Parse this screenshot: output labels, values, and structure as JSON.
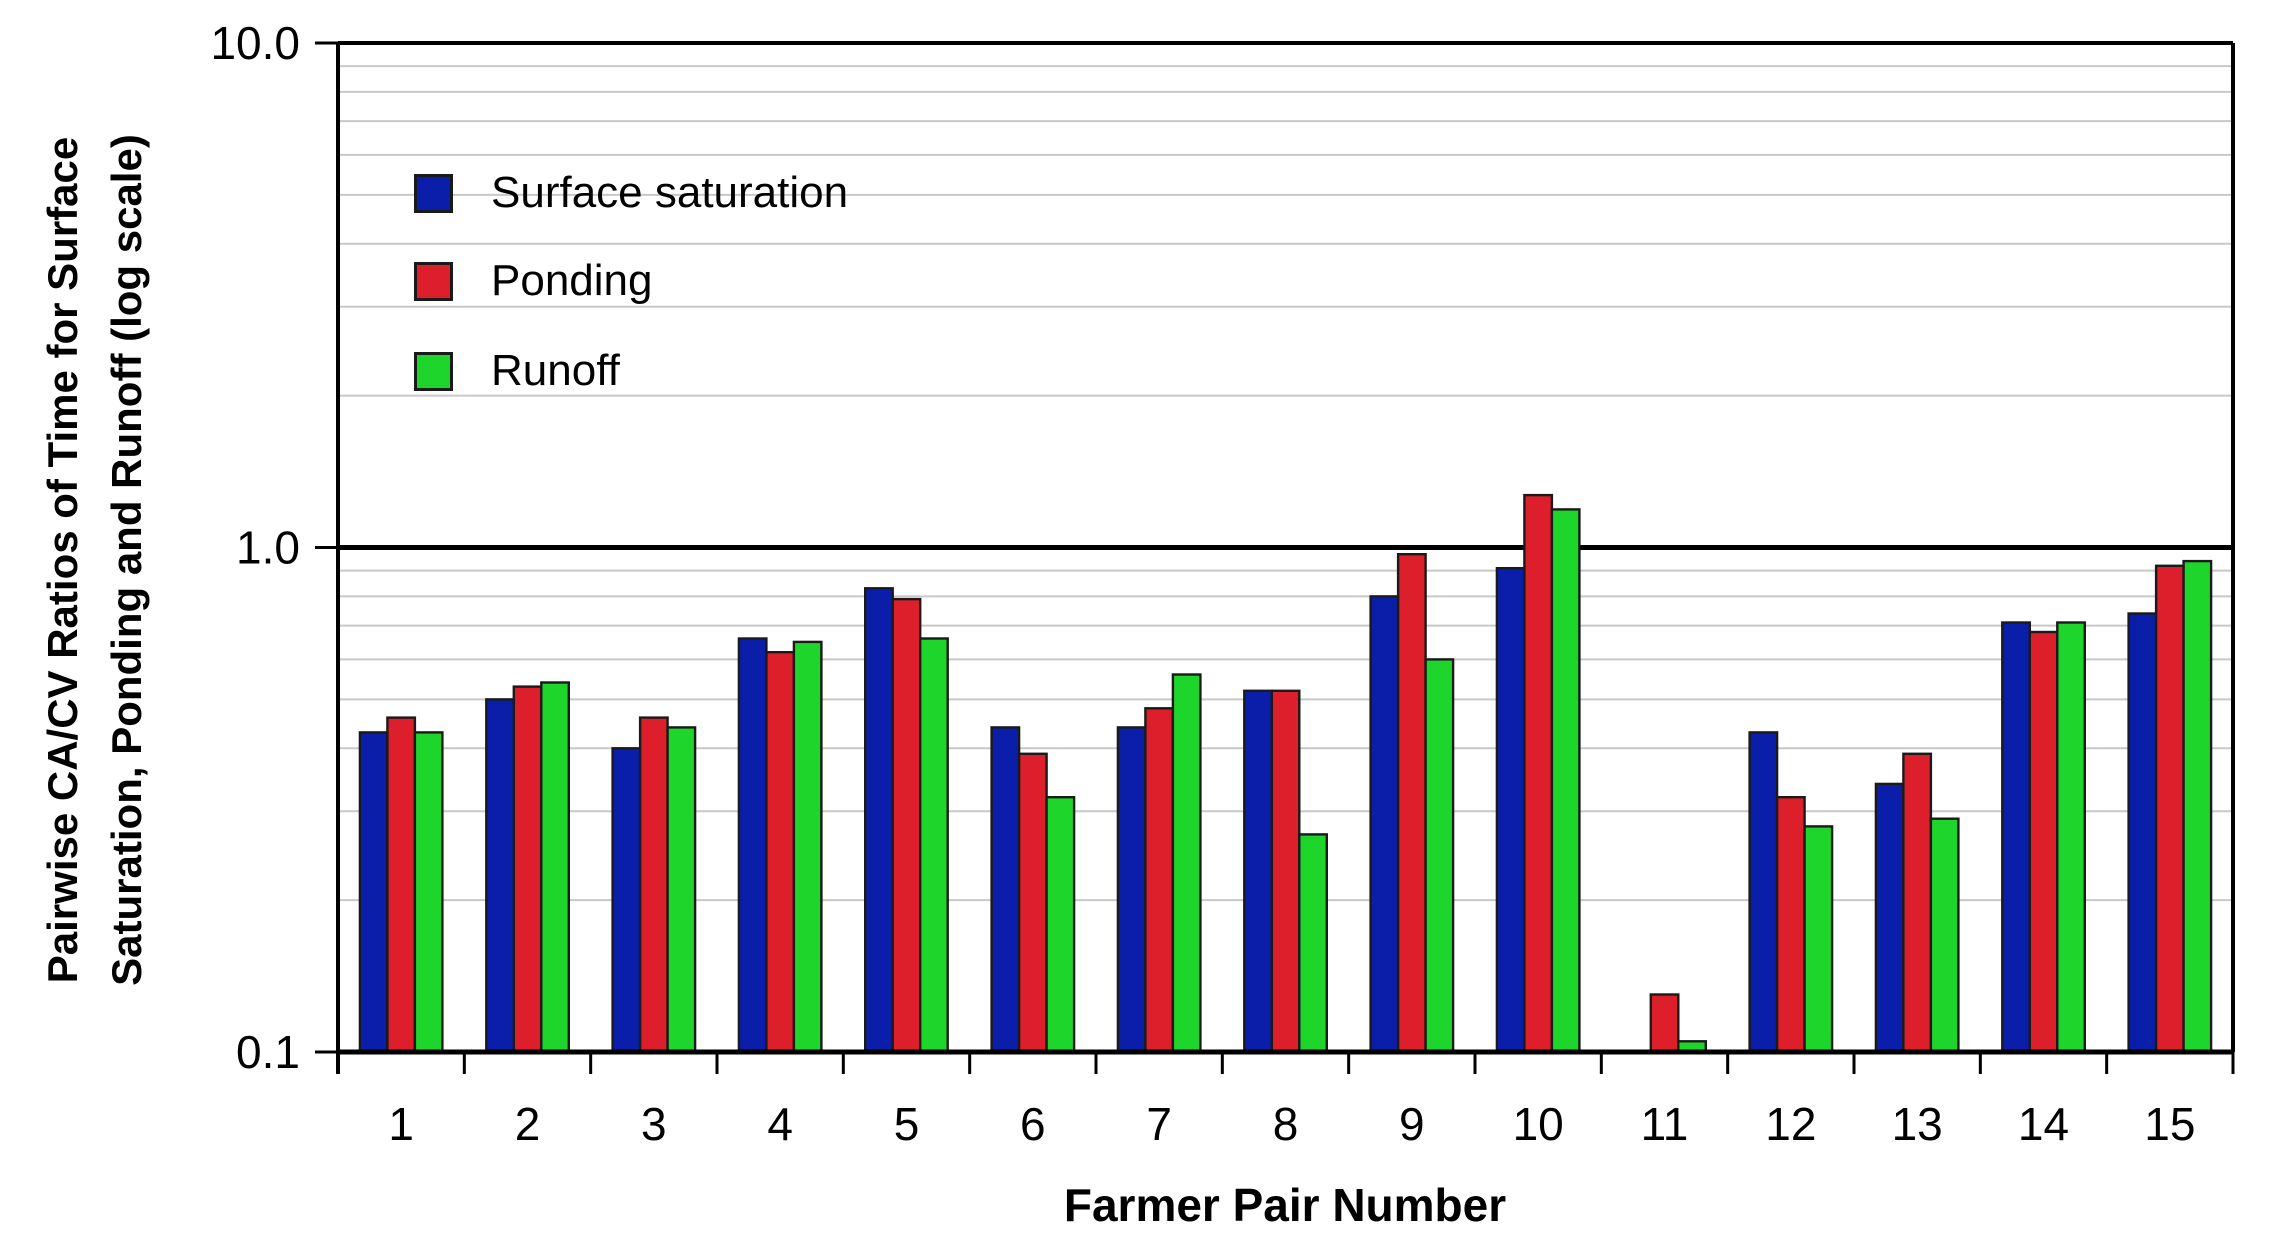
{
  "chart_data": {
    "type": "bar",
    "title": "",
    "xlabel": "Farmer Pair Number",
    "ylabel_line1": "Pairwise CA/CV Ratios of Time for Surface",
    "ylabel_line2": "Saturation, Ponding and Runoff (log scale)",
    "y_scale": "log",
    "ylim": [
      0.1,
      10
    ],
    "y_major_ticks": [
      {
        "value": 10,
        "label": "10.0"
      },
      {
        "value": 1,
        "label": "1.0"
      },
      {
        "value": 0.1,
        "label": "0.1"
      }
    ],
    "y_minor_gridlines": [
      0.2,
      0.3,
      0.4,
      0.5,
      0.6,
      0.7,
      0.8,
      0.9,
      2,
      3,
      4,
      5,
      6,
      7,
      8,
      9
    ],
    "reference_line": 1.0,
    "grid": "horizontal minor gridlines, log scale",
    "legend_position": "inside top-left",
    "categories": [
      "1",
      "2",
      "3",
      "4",
      "5",
      "6",
      "7",
      "8",
      "9",
      "10",
      "11",
      "12",
      "13",
      "14",
      "15"
    ],
    "series": [
      {
        "name": "Surface saturation",
        "color": "#0A1EAA",
        "values": [
          0.43,
          0.5,
          0.4,
          0.66,
          0.83,
          0.44,
          0.44,
          0.52,
          0.8,
          0.91,
          null,
          0.43,
          0.34,
          0.71,
          0.74
        ]
      },
      {
        "name": "Ponding",
        "color": "#DD1E2B",
        "values": [
          0.46,
          0.53,
          0.46,
          0.62,
          0.79,
          0.39,
          0.48,
          0.52,
          0.97,
          1.27,
          0.13,
          0.32,
          0.39,
          0.68,
          0.92
        ]
      },
      {
        "name": "Runoff",
        "color": "#1ED62B",
        "values": [
          0.43,
          0.54,
          0.44,
          0.65,
          0.66,
          0.32,
          0.56,
          0.27,
          0.6,
          1.19,
          0.105,
          0.28,
          0.29,
          0.71,
          0.94
        ]
      }
    ]
  }
}
